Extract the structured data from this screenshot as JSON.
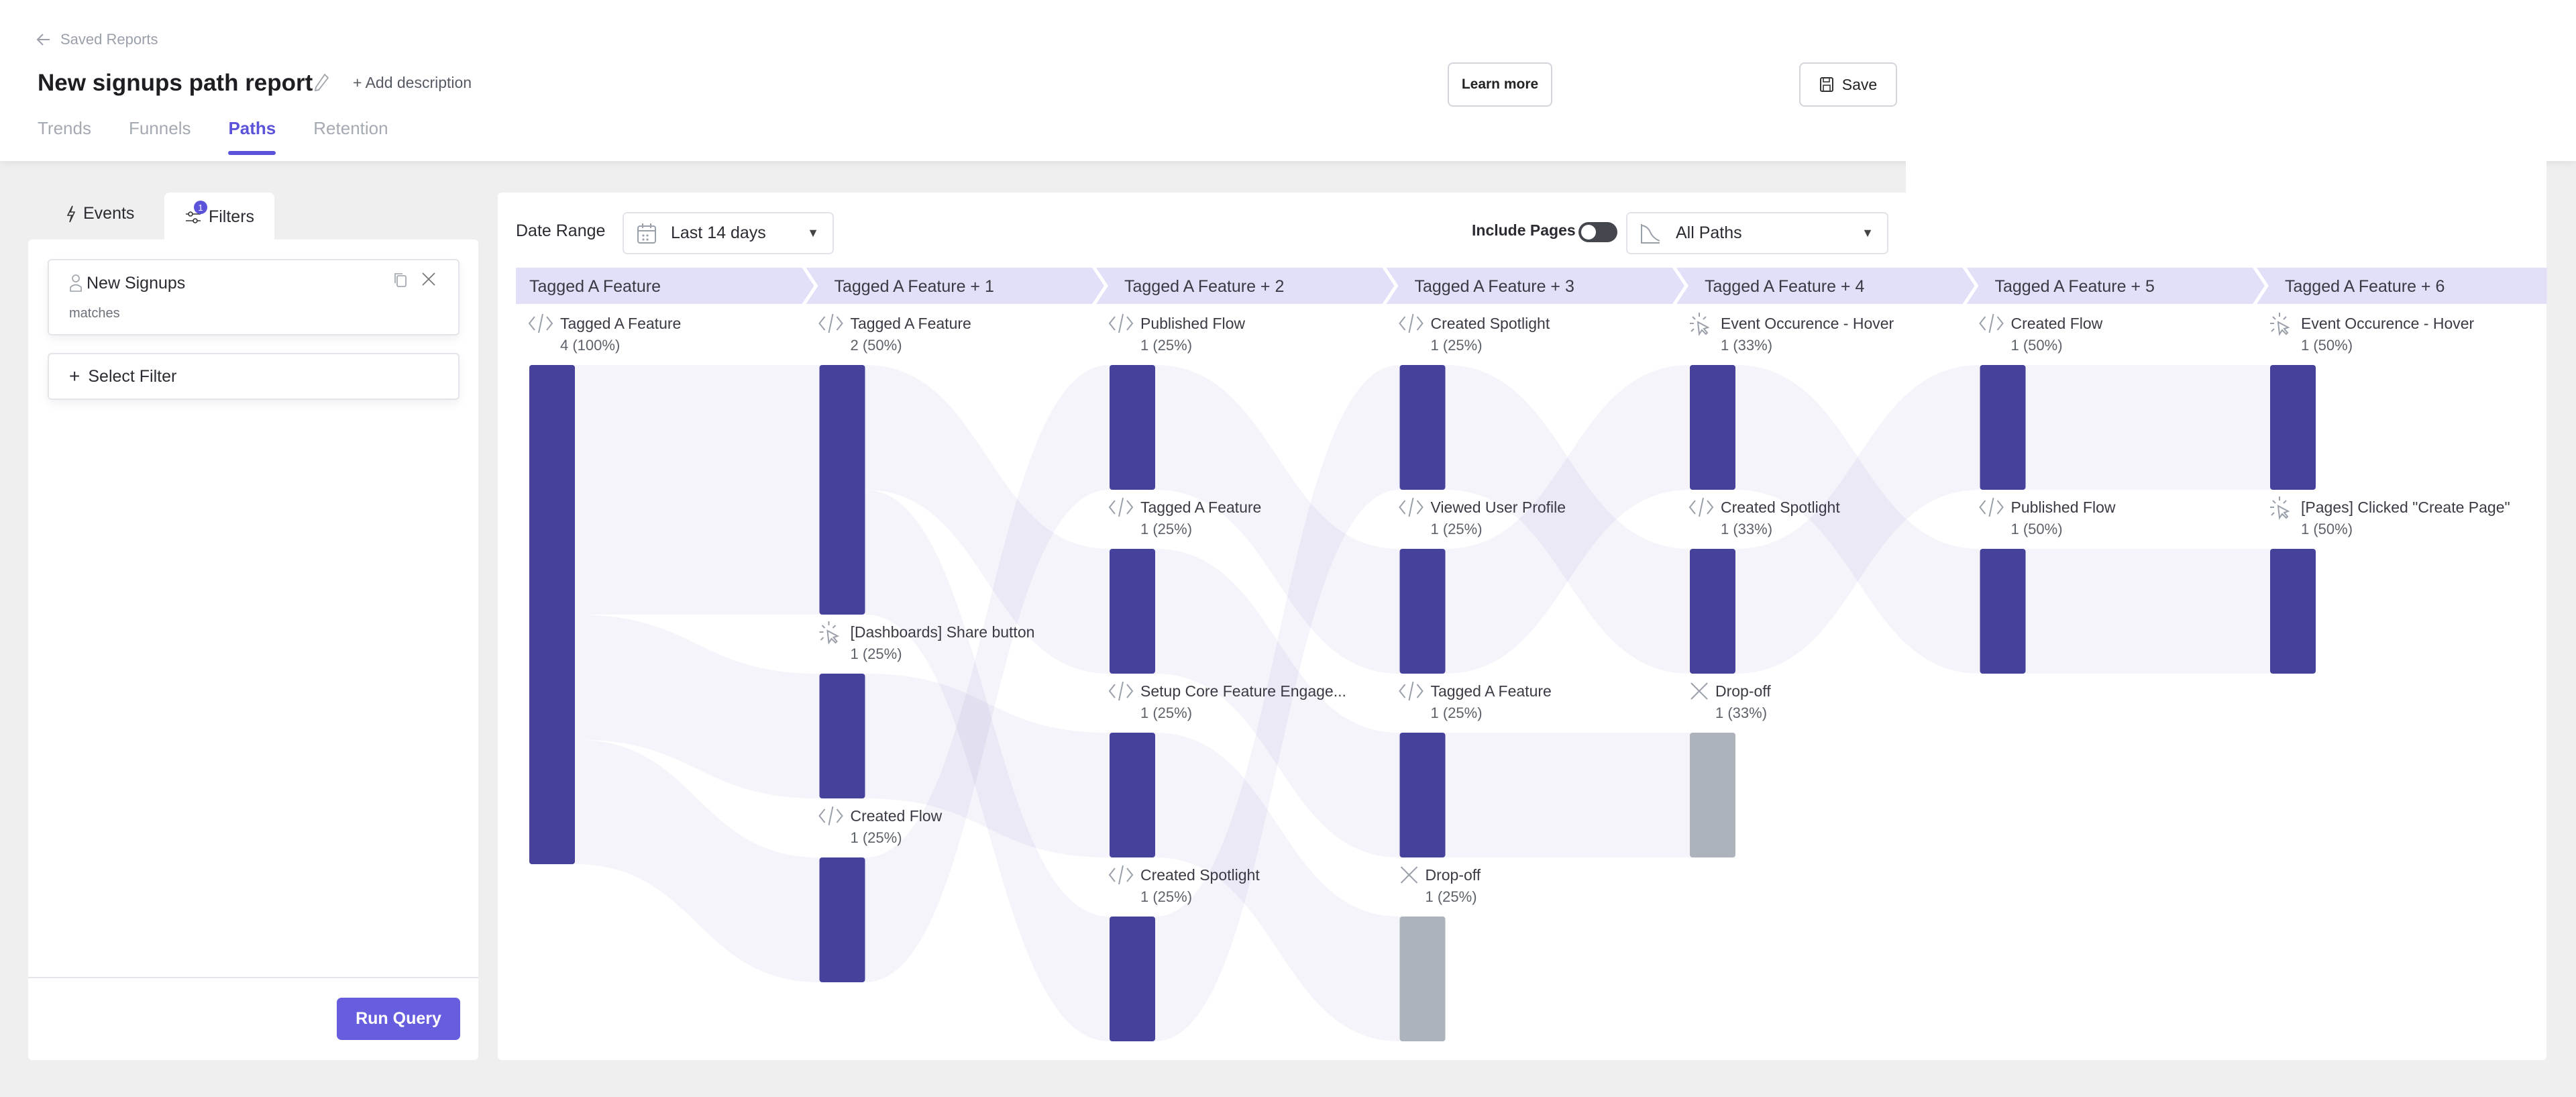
{
  "header": {
    "back_label": "Saved Reports",
    "title": "New signups path report",
    "add_description": "Add description",
    "learn_more": "Learn more",
    "save": "Save",
    "tabs": [
      {
        "label": "Trends",
        "active": false
      },
      {
        "label": "Funnels",
        "active": false
      },
      {
        "label": "Paths",
        "active": true
      },
      {
        "label": "Retention",
        "active": false
      }
    ]
  },
  "sidebar": {
    "tabs": {
      "events": "Events",
      "filters": "Filters",
      "filters_badge": "1"
    },
    "filter_card": {
      "name": "New Signups",
      "condition": "matches"
    },
    "select_filter": "Select Filter",
    "run_query": "Run Query"
  },
  "toolbar": {
    "date_range_label": "Date Range",
    "date_range_value": "Last 14 days",
    "include_pages_label": "Include Pages",
    "include_pages_on": false,
    "paths_value": "All Paths"
  },
  "colors": {
    "accent": "#5b53d9",
    "node": "#46419a",
    "dropoff": "#adb3bb",
    "step_band": "#e1e0f8",
    "link": "#6b63b5"
  },
  "chart_data": {
    "type": "sankey",
    "steps": [
      "Tagged A Feature",
      "Tagged A Feature + 1",
      "Tagged A Feature + 2",
      "Tagged A Feature + 3",
      "Tagged A Feature + 4",
      "Tagged A Feature + 5",
      "Tagged A Feature + 6"
    ],
    "columns": [
      [
        {
          "name": "Tagged A Feature",
          "count": "4 (100%)",
          "value": 4,
          "icon": "code"
        }
      ],
      [
        {
          "name": "Tagged A Feature",
          "count": "2 (50%)",
          "value": 2,
          "icon": "code"
        },
        {
          "name": "[Dashboards] Share button",
          "count": "1 (25%)",
          "value": 1,
          "icon": "click"
        },
        {
          "name": "Created Flow",
          "count": "1 (25%)",
          "value": 1,
          "icon": "code"
        }
      ],
      [
        {
          "name": "Published Flow",
          "count": "1 (25%)",
          "value": 1,
          "icon": "code"
        },
        {
          "name": "Tagged A Feature",
          "count": "1 (25%)",
          "value": 1,
          "icon": "code"
        },
        {
          "name": "Setup Core Feature Engage...",
          "count": "1 (25%)",
          "value": 1,
          "icon": "code"
        },
        {
          "name": "Created Spotlight",
          "count": "1 (25%)",
          "value": 1,
          "icon": "code"
        }
      ],
      [
        {
          "name": "Created Spotlight",
          "count": "1 (25%)",
          "value": 1,
          "icon": "code"
        },
        {
          "name": "Viewed User Profile",
          "count": "1 (25%)",
          "value": 1,
          "icon": "code"
        },
        {
          "name": "Tagged A Feature",
          "count": "1 (25%)",
          "value": 1,
          "icon": "code"
        },
        {
          "name": "Drop-off",
          "count": "1 (25%)",
          "value": 1,
          "icon": "dropoff",
          "dropoff": true
        }
      ],
      [
        {
          "name": "Event Occurence - Hover",
          "count": "1 (33%)",
          "value": 1,
          "icon": "click"
        },
        {
          "name": "Created Spotlight",
          "count": "1 (33%)",
          "value": 1,
          "icon": "code"
        },
        {
          "name": "Drop-off",
          "count": "1 (33%)",
          "value": 1,
          "icon": "dropoff",
          "dropoff": true
        }
      ],
      [
        {
          "name": "Created Flow",
          "count": "1 (50%)",
          "value": 1,
          "icon": "code"
        },
        {
          "name": "Published Flow",
          "count": "1 (50%)",
          "value": 1,
          "icon": "code"
        }
      ],
      [
        {
          "name": "Event Occurence - Hover",
          "count": "1 (50%)",
          "value": 1,
          "icon": "click"
        },
        {
          "name": "[Pages] Clicked \"Create Page\"",
          "count": "1 (50%)",
          "value": 1,
          "icon": "click"
        }
      ]
    ],
    "links": [
      {
        "from": [
          0,
          0
        ],
        "to": [
          1,
          0
        ],
        "value": 2
      },
      {
        "from": [
          0,
          0
        ],
        "to": [
          1,
          1
        ],
        "value": 1
      },
      {
        "from": [
          0,
          0
        ],
        "to": [
          1,
          2
        ],
        "value": 1
      },
      {
        "from": [
          1,
          0
        ],
        "to": [
          2,
          1
        ],
        "value": 1
      },
      {
        "from": [
          1,
          0
        ],
        "to": [
          2,
          3
        ],
        "value": 1
      },
      {
        "from": [
          1,
          1
        ],
        "to": [
          2,
          2
        ],
        "value": 1
      },
      {
        "from": [
          1,
          2
        ],
        "to": [
          2,
          0
        ],
        "value": 1
      },
      {
        "from": [
          2,
          0
        ],
        "to": [
          3,
          1
        ],
        "value": 1
      },
      {
        "from": [
          2,
          1
        ],
        "to": [
          3,
          2
        ],
        "value": 1
      },
      {
        "from": [
          2,
          2
        ],
        "to": [
          3,
          3
        ],
        "value": 1
      },
      {
        "from": [
          2,
          3
        ],
        "to": [
          3,
          0
        ],
        "value": 1
      },
      {
        "from": [
          3,
          0
        ],
        "to": [
          4,
          1
        ],
        "value": 1
      },
      {
        "from": [
          3,
          1
        ],
        "to": [
          4,
          0
        ],
        "value": 1
      },
      {
        "from": [
          3,
          2
        ],
        "to": [
          4,
          2
        ],
        "value": 1
      },
      {
        "from": [
          4,
          0
        ],
        "to": [
          5,
          1
        ],
        "value": 1
      },
      {
        "from": [
          4,
          1
        ],
        "to": [
          5,
          0
        ],
        "value": 1
      },
      {
        "from": [
          5,
          0
        ],
        "to": [
          6,
          0
        ],
        "value": 1
      },
      {
        "from": [
          5,
          1
        ],
        "to": [
          6,
          1
        ],
        "value": 1
      }
    ]
  }
}
